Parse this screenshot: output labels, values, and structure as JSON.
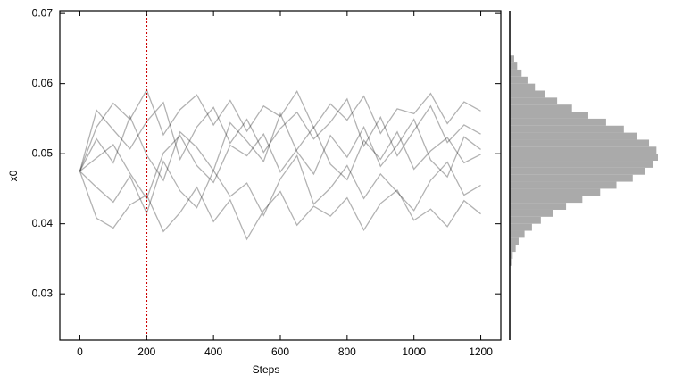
{
  "chart_data": {
    "type": "trace",
    "xlabel": "Steps",
    "ylabel": "x0",
    "x": [
      0,
      50,
      100,
      150,
      200,
      250,
      300,
      350,
      400,
      450,
      500,
      550,
      600,
      650,
      700,
      750,
      800,
      850,
      900,
      950,
      1000,
      1050,
      1100,
      1150,
      1200
    ],
    "series": [
      {
        "color": "#000000",
        "values": [
          0.0475,
          0.0521,
          0.0487,
          0.0553,
          0.0498,
          0.0462,
          0.0531,
          0.0509,
          0.0476,
          0.0544,
          0.0518,
          0.0489,
          0.0557,
          0.0503,
          0.0471,
          0.0526,
          0.0495,
          0.0538,
          0.0482,
          0.0512,
          0.0549,
          0.0491,
          0.0467,
          0.0524,
          0.0506
        ]
      },
      {
        "color": "#000000",
        "values": [
          0.0475,
          0.0452,
          0.0431,
          0.0468,
          0.0415,
          0.0489,
          0.0447,
          0.0423,
          0.0476,
          0.0439,
          0.0458,
          0.0412,
          0.0464,
          0.0497,
          0.0428,
          0.0451,
          0.0483,
          0.0436,
          0.0471,
          0.0445,
          0.0419,
          0.0462,
          0.0488,
          0.0441,
          0.0455
        ]
      },
      {
        "color": "#000000",
        "values": [
          0.0475,
          0.0538,
          0.0572,
          0.0549,
          0.0591,
          0.0527,
          0.0563,
          0.0584,
          0.0541,
          0.0576,
          0.0532,
          0.0568,
          0.0553,
          0.0589,
          0.0537,
          0.0571,
          0.0548,
          0.0582,
          0.0529,
          0.0564,
          0.0557,
          0.0586,
          0.0543,
          0.0574,
          0.0561
        ]
      },
      {
        "color": "#000000",
        "values": [
          0.0475,
          0.0494,
          0.0513,
          0.0472,
          0.0436,
          0.0501,
          0.0526,
          0.0483,
          0.0459,
          0.0512,
          0.0497,
          0.0528,
          0.0474,
          0.0506,
          0.0538,
          0.0485,
          0.0463,
          0.0519,
          0.0492,
          0.0531,
          0.0478,
          0.0504,
          0.0523,
          0.0487,
          0.0499
        ]
      },
      {
        "color": "#000000",
        "values": [
          0.0475,
          0.0408,
          0.0394,
          0.0427,
          0.0441,
          0.0389,
          0.0416,
          0.0452,
          0.0403,
          0.0434,
          0.0378,
          0.0419,
          0.0446,
          0.0398,
          0.0425,
          0.0411,
          0.0437,
          0.0391,
          0.0429,
          0.0448,
          0.0405,
          0.0421,
          0.0396,
          0.0433,
          0.0414
        ]
      },
      {
        "color": "#000000",
        "values": [
          0.0475,
          0.0562,
          0.0534,
          0.0507,
          0.0546,
          0.0573,
          0.0492,
          0.0538,
          0.0566,
          0.0515,
          0.0549,
          0.0502,
          0.0536,
          0.0559,
          0.0521,
          0.0545,
          0.0578,
          0.0511,
          0.0552,
          0.0497,
          0.0533,
          0.0568,
          0.0516,
          0.0541,
          0.0528
        ]
      }
    ],
    "line_opacity": 0.3,
    "vline": {
      "value": 200,
      "color": "#cc0000"
    },
    "xlim": [
      -60,
      1260
    ],
    "xticks": [
      0,
      200,
      400,
      600,
      800,
      1000,
      1200
    ],
    "ylim": [
      0.0234,
      0.0704
    ],
    "yticks": [
      0.03,
      0.04,
      0.05,
      0.06,
      0.07
    ],
    "histogram": {
      "color": "#aaaaaa",
      "bins": [
        0.034,
        0.035,
        0.036,
        0.037,
        0.038,
        0.039,
        0.04,
        0.041,
        0.042,
        0.043,
        0.044,
        0.045,
        0.046,
        0.047,
        0.048,
        0.049,
        0.05,
        0.051,
        0.052,
        0.053,
        0.054,
        0.055,
        0.056,
        0.057,
        0.058,
        0.059,
        0.06,
        0.061,
        0.062,
        0.063,
        0.064
      ],
      "counts": [
        1,
        2,
        4,
        6,
        10,
        15,
        21,
        29,
        38,
        49,
        61,
        72,
        83,
        91,
        97,
        100,
        99,
        94,
        86,
        77,
        65,
        53,
        42,
        32,
        24,
        17,
        12,
        8,
        5,
        3
      ]
    }
  }
}
